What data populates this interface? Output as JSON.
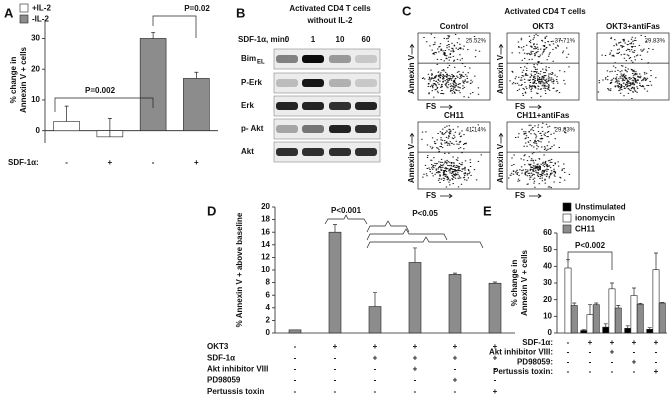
{
  "chart_data": [
    {
      "type": "bar",
      "panel": "A",
      "y_label": [
        "% change in",
        "Annexin V + cells"
      ],
      "ylim": [
        -4,
        36
      ],
      "yticks": [
        0,
        10,
        20,
        30
      ],
      "series": [
        {
          "name": "+IL-2",
          "color": "#ffffff",
          "values": [
            3,
            -2,
            null,
            null
          ],
          "errors": [
            5,
            6,
            null,
            null
          ]
        },
        {
          "name": "-IL-2",
          "color": "#8c8c8c",
          "values": [
            null,
            null,
            30,
            17
          ],
          "errors": [
            null,
            null,
            2,
            2
          ]
        }
      ],
      "rows": [
        {
          "label": "SDF-1α:",
          "marks": [
            "-",
            "+",
            "-",
            "+"
          ]
        }
      ],
      "legend_position": "top-left",
      "annotations": [
        "P=0.002",
        "P=0.02"
      ]
    },
    {
      "type": "bar",
      "panel": "D",
      "y_label": [
        "% Annexin V + above baseline"
      ],
      "ylim": [
        0,
        20
      ],
      "yticks": [
        0,
        2,
        4,
        6,
        8,
        10,
        12,
        14,
        16,
        18,
        20
      ],
      "color": "#8c8c8c",
      "values": [
        0.5,
        16,
        4.2,
        11.2,
        9.3,
        7.9
      ],
      "errors": [
        null,
        1.2,
        2.2,
        2.3,
        0.2,
        0.2
      ],
      "rows": [
        {
          "label": "OKT3",
          "marks": [
            "-",
            "+",
            "+",
            "+",
            "+",
            "+"
          ]
        },
        {
          "label": "SDF-1α",
          "marks": [
            "-",
            "-",
            "+",
            "+",
            "+",
            "+"
          ]
        },
        {
          "label": "Akt inhibitor VIII",
          "marks": [
            "-",
            "-",
            "-",
            "+",
            "-",
            "-"
          ]
        },
        {
          "label": "PD98059",
          "marks": [
            "-",
            "-",
            "-",
            "-",
            "+",
            "-"
          ]
        },
        {
          "label": "Pertussis toxin",
          "marks": [
            "-",
            "-",
            "-",
            "-",
            "-",
            "+"
          ]
        }
      ],
      "annotations": [
        "P<0.001",
        "P<0.05"
      ]
    },
    {
      "type": "bar",
      "panel": "E",
      "y_label": [
        "% change in",
        "Annexin V + cells"
      ],
      "ylim": [
        0,
        60
      ],
      "yticks": [
        0,
        10,
        20,
        30,
        40,
        50,
        60
      ],
      "series": [
        {
          "name": "Unstimulated",
          "color": "#000000",
          "values": [
            null,
            1.5,
            3.5,
            2.8,
            2.2
          ],
          "errors": [
            null,
            0.5,
            2,
            1.5,
            1
          ]
        },
        {
          "name": "ionomycin",
          "color": "#ffffff",
          "values": [
            39,
            11,
            26.5,
            22.5,
            38
          ],
          "errors": [
            5,
            6,
            3.5,
            4.5,
            10
          ]
        },
        {
          "name": "CH11",
          "color": "#8c8c8c",
          "values": [
            16.5,
            17,
            15,
            17.3,
            18
          ],
          "errors": [
            1.5,
            1,
            1.5,
            0.5,
            0.3
          ]
        }
      ],
      "rows": [
        {
          "label": "SDF-1α:",
          "marks": [
            "-",
            "+",
            "+",
            "+",
            "+"
          ]
        },
        {
          "label": "Akt inhibitor VIII:",
          "marks": [
            "-",
            "-",
            "+",
            "-",
            "-"
          ]
        },
        {
          "label": "PD98059:",
          "marks": [
            "-",
            "-",
            "-",
            "+",
            "-"
          ]
        },
        {
          "label": "Pertussis toxin:",
          "marks": [
            "-",
            "-",
            "-",
            "-",
            "+"
          ]
        }
      ],
      "legend_position": "top-right",
      "annotations": [
        "P<0.002"
      ]
    }
  ],
  "blot": {
    "panel": "B",
    "title": "Activated CD4 T cells",
    "subtitle": "without IL-2",
    "time_label": "SDF-1α, min:",
    "times": [
      0,
      1,
      10,
      60
    ],
    "rows": [
      {
        "label": "Bim",
        "sub": "EL"
      },
      {
        "label": "P-Erk"
      },
      {
        "label": "Erk"
      },
      {
        "label": "p- Akt"
      },
      {
        "label": "Akt"
      }
    ]
  },
  "flow": {
    "panel": "C",
    "title": "Activated CD4 T cells",
    "y_label": "Annexin V",
    "x_label": "FS",
    "plots": [
      {
        "title": "Control",
        "percent": "25.52%"
      },
      {
        "title": "OKT3",
        "percent": "37.71%"
      },
      {
        "title": "OKT3+antiFas",
        "percent": "29.83%"
      },
      {
        "title": "CH11",
        "percent": "41.14%"
      },
      {
        "title": "CH11+antiFas",
        "percent": "29.83%"
      }
    ]
  }
}
